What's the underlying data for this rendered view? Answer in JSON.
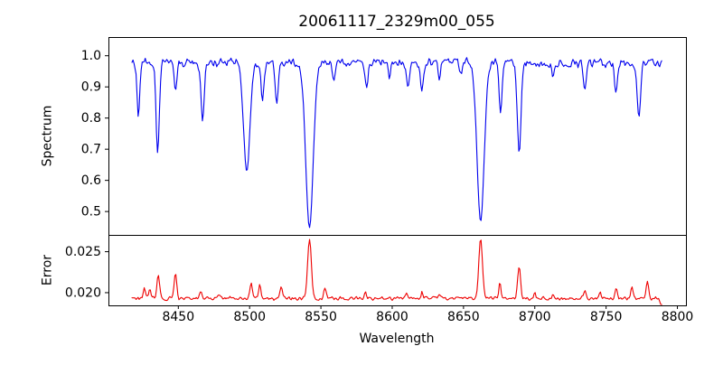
{
  "chart_data": {
    "type": "line",
    "title": "20061117_2329m00_055",
    "xlabel": "Wavelength",
    "xlim": [
      8401,
      8806
    ],
    "xticks": [
      8450,
      8500,
      8550,
      8600,
      8650,
      8700,
      8750,
      8800
    ],
    "x_data_range": [
      8417.5,
      8789.0
    ],
    "n_samples": 520,
    "noise_seed": 20061117,
    "grid": false,
    "legend": "none",
    "panels": [
      {
        "name": "spectrum",
        "ylabel": "Spectrum",
        "line_color": "#0000ee",
        "ylim": [
          0.425,
          1.06
        ],
        "yticks": [
          {
            "value": 1.0,
            "label": "1.0"
          },
          {
            "value": 0.9,
            "label": "0.9"
          },
          {
            "value": 0.8,
            "label": "0.8"
          },
          {
            "value": 0.7,
            "label": "0.7"
          },
          {
            "value": 0.6,
            "label": "0.6"
          },
          {
            "value": 0.5,
            "label": "0.5"
          }
        ],
        "continuum": 0.978,
        "noise_amp": 0.017,
        "absorption_lines": [
          {
            "wavelength": 8422.0,
            "depth": 0.17,
            "sigma": 0.9
          },
          {
            "wavelength": 8435.5,
            "depth": 0.29,
            "sigma": 1.1
          },
          {
            "wavelength": 8448.0,
            "depth": 0.1,
            "sigma": 0.9
          },
          {
            "wavelength": 8467.0,
            "depth": 0.19,
            "sigma": 1.1
          },
          {
            "wavelength": 8498.0,
            "depth": 0.35,
            "sigma": 2.2
          },
          {
            "wavelength": 8509.0,
            "depth": 0.13,
            "sigma": 1.0
          },
          {
            "wavelength": 8519.0,
            "depth": 0.14,
            "sigma": 1.0
          },
          {
            "wavelength": 8542.0,
            "depth": 0.53,
            "sigma": 2.6
          },
          {
            "wavelength": 8559.0,
            "depth": 0.06,
            "sigma": 0.9
          },
          {
            "wavelength": 8582.0,
            "depth": 0.08,
            "sigma": 1.0
          },
          {
            "wavelength": 8598.0,
            "depth": 0.05,
            "sigma": 0.9
          },
          {
            "wavelength": 8611.0,
            "depth": 0.07,
            "sigma": 1.0
          },
          {
            "wavelength": 8621.0,
            "depth": 0.09,
            "sigma": 1.0
          },
          {
            "wavelength": 8633.0,
            "depth": 0.06,
            "sigma": 0.9
          },
          {
            "wavelength": 8648.0,
            "depth": 0.04,
            "sigma": 0.9
          },
          {
            "wavelength": 8662.0,
            "depth": 0.51,
            "sigma": 2.5
          },
          {
            "wavelength": 8676.0,
            "depth": 0.16,
            "sigma": 1.0
          },
          {
            "wavelength": 8689.0,
            "depth": 0.29,
            "sigma": 1.3
          },
          {
            "wavelength": 8713.0,
            "depth": 0.05,
            "sigma": 0.9
          },
          {
            "wavelength": 8735.0,
            "depth": 0.09,
            "sigma": 1.0
          },
          {
            "wavelength": 8757.0,
            "depth": 0.1,
            "sigma": 1.0
          },
          {
            "wavelength": 8773.0,
            "depth": 0.18,
            "sigma": 1.1
          }
        ]
      },
      {
        "name": "error",
        "ylabel": "Error",
        "line_color": "#ee0000",
        "ylim": [
          0.01845,
          0.02705
        ],
        "yticks": [
          {
            "value": 0.025,
            "label": "0.025"
          },
          {
            "value": 0.02,
            "label": "0.020"
          }
        ],
        "baseline": 0.0193,
        "noise_amp": 0.00026,
        "spikes": [
          {
            "wavelength": 8426.0,
            "height": 0.0013,
            "sigma": 0.7
          },
          {
            "wavelength": 8430.0,
            "height": 0.0013,
            "sigma": 0.7
          },
          {
            "wavelength": 8436.0,
            "height": 0.0029,
            "sigma": 0.9
          },
          {
            "wavelength": 8448.0,
            "height": 0.003,
            "sigma": 0.9
          },
          {
            "wavelength": 8466.0,
            "height": 0.001,
            "sigma": 0.8
          },
          {
            "wavelength": 8478.0,
            "height": 0.0004,
            "sigma": 0.9
          },
          {
            "wavelength": 8501.0,
            "height": 0.0019,
            "sigma": 0.9
          },
          {
            "wavelength": 8507.0,
            "height": 0.0016,
            "sigma": 0.8
          },
          {
            "wavelength": 8522.0,
            "height": 0.0014,
            "sigma": 0.8
          },
          {
            "wavelength": 8542.0,
            "height": 0.0073,
            "sigma": 1.3
          },
          {
            "wavelength": 8553.0,
            "height": 0.0013,
            "sigma": 0.9
          },
          {
            "wavelength": 8581.0,
            "height": 0.0008,
            "sigma": 0.8
          },
          {
            "wavelength": 8610.0,
            "height": 0.0008,
            "sigma": 0.8
          },
          {
            "wavelength": 8621.0,
            "height": 0.001,
            "sigma": 0.5
          },
          {
            "wavelength": 8633.0,
            "height": 0.0005,
            "sigma": 0.7
          },
          {
            "wavelength": 8662.0,
            "height": 0.0071,
            "sigma": 1.3
          },
          {
            "wavelength": 8675.5,
            "height": 0.002,
            "sigma": 0.7
          },
          {
            "wavelength": 8689.0,
            "height": 0.004,
            "sigma": 1.0
          },
          {
            "wavelength": 8700.0,
            "height": 0.0006,
            "sigma": 0.7
          },
          {
            "wavelength": 8713.0,
            "height": 0.0005,
            "sigma": 0.7
          },
          {
            "wavelength": 8735.0,
            "height": 0.001,
            "sigma": 0.8
          },
          {
            "wavelength": 8746.0,
            "height": 0.0008,
            "sigma": 0.7
          },
          {
            "wavelength": 8757.0,
            "height": 0.0013,
            "sigma": 0.8
          },
          {
            "wavelength": 8768.0,
            "height": 0.0015,
            "sigma": 0.8
          },
          {
            "wavelength": 8779.0,
            "height": 0.0022,
            "sigma": 0.8
          },
          {
            "wavelength": 8789.0,
            "height": -0.0006,
            "sigma": 1.2
          }
        ]
      }
    ]
  }
}
